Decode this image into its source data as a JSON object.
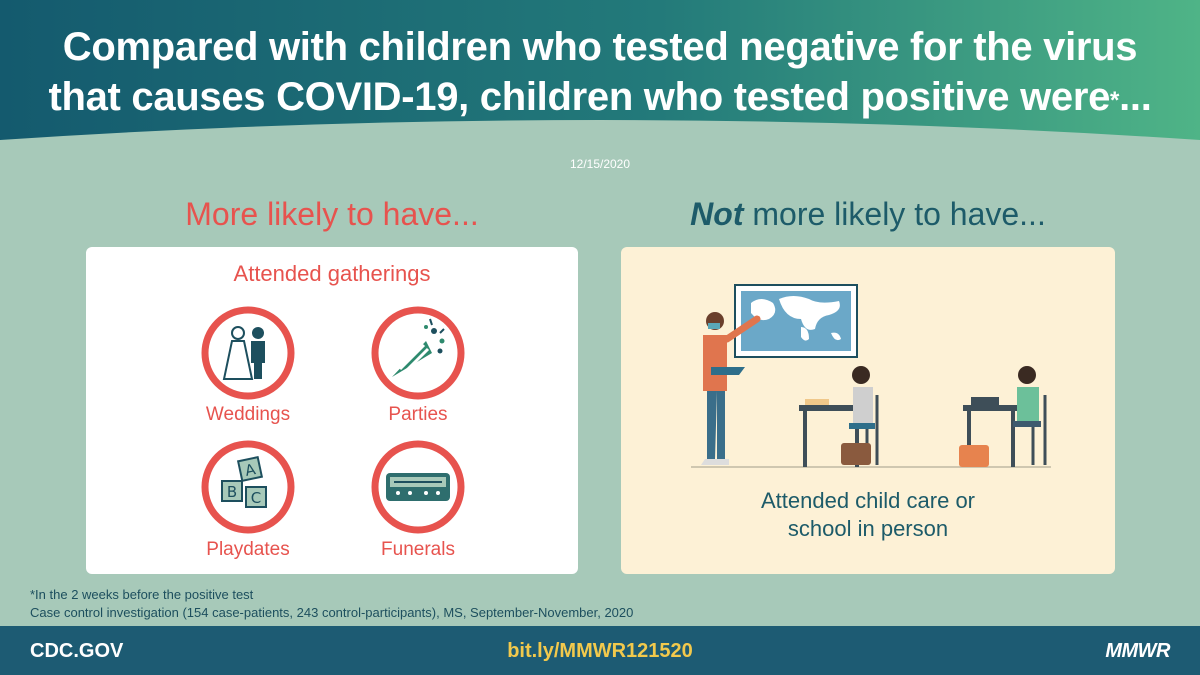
{
  "header": {
    "title_line1": "Compared with children who tested negative for the virus",
    "title_line2": "that causes COVID-19, children who tested positive were",
    "title_mark": "*",
    "title_ellipsis": "...",
    "date": "12/15/2020",
    "colors": {
      "gradient_start": "#145a6e",
      "gradient_end": "#4fb487"
    }
  },
  "left_column": {
    "heading": "More likely to have...",
    "card_title": "Attended gatherings",
    "items": [
      {
        "label": "Weddings",
        "icon": "wedding-couple-icon"
      },
      {
        "label": "Parties",
        "icon": "party-popper-icon"
      },
      {
        "label": "Playdates",
        "icon": "abc-blocks-icon"
      },
      {
        "label": "Funerals",
        "icon": "casket-icon"
      }
    ],
    "accent_color": "#e7534e"
  },
  "right_column": {
    "heading_emphasis": "Not",
    "heading_rest": " more likely to have...",
    "caption_line1": "Attended child care or",
    "caption_line2": "school in person",
    "accent_color": "#1d5b69"
  },
  "footnotes": {
    "note1": "*In the 2 weeks before the positive test",
    "note2": "Case control investigation (154 case-patients, 243 control-participants), MS, September-November, 2020"
  },
  "bottom_bar": {
    "site": "CDC.GOV",
    "link": "bit.ly/MMWR121520",
    "brand": "MMWR"
  }
}
